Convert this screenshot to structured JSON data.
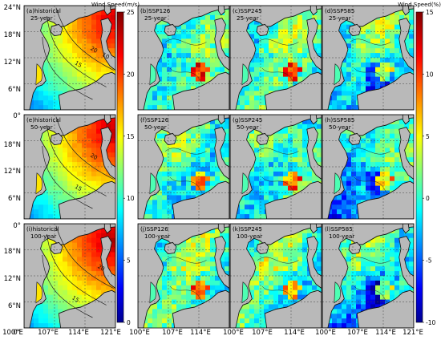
{
  "colorbar_left": {
    "title": "Wind Speed(m/s)",
    "ticks": [
      "25",
      "20",
      "15",
      "10",
      "5",
      "0"
    ],
    "range": [
      0,
      25
    ]
  },
  "colorbar_right": {
    "title": "Wind Speed(%)",
    "ticks": [
      "15",
      "10",
      "5",
      "0",
      "-5",
      "-10"
    ],
    "range": [
      -10,
      15
    ]
  },
  "lat_labels": [
    "24°N",
    "18°N",
    "12°N",
    "6°N",
    "0°",
    "18°N",
    "12°N",
    "6°N",
    "0°",
    "18°N",
    "12°N",
    "6°N",
    "0°"
  ],
  "lon_labels": [
    "100°E",
    "107°E",
    "114°E",
    "121°E",
    "100°E",
    "107°E",
    "114°E",
    "100°E",
    "107°E",
    "114°E",
    "100°E",
    "107°E",
    "114°E",
    "121°E"
  ],
  "panels": [
    {
      "id": "a",
      "line1": "(a)historical",
      "line2": "25-year",
      "kind": "abs",
      "level": 0
    },
    {
      "id": "b",
      "line1": "(b)SSP126",
      "line2": "25-year",
      "kind": "pct",
      "scenario": 0
    },
    {
      "id": "c",
      "line1": "(c)SSP245",
      "line2": "25-year",
      "kind": "pct",
      "scenario": 1
    },
    {
      "id": "d",
      "line1": "(d)SSP585",
      "line2": "25-year",
      "kind": "pct",
      "scenario": 2
    },
    {
      "id": "e",
      "line1": "(e)historical",
      "line2": "50-year",
      "kind": "abs",
      "level": 1
    },
    {
      "id": "f",
      "line1": "(f)SSP126",
      "line2": "50-year",
      "kind": "pct",
      "scenario": 0
    },
    {
      "id": "g",
      "line1": "(g)SSP245",
      "line2": "50-year",
      "kind": "pct",
      "scenario": 1
    },
    {
      "id": "h",
      "line1": "(h)SSP585",
      "line2": "50-year",
      "kind": "pct",
      "scenario": 2
    },
    {
      "id": "i",
      "line1": "(i)historical",
      "line2": "100-year",
      "kind": "abs",
      "level": 2
    },
    {
      "id": "j",
      "line1": "(j)SSP126",
      "line2": "100-year",
      "kind": "pct",
      "scenario": 0
    },
    {
      "id": "k",
      "line1": "(k)SSP245",
      "line2": "100-year",
      "kind": "pct",
      "scenario": 1
    },
    {
      "id": "l",
      "line1": "(l)SSP585",
      "line2": "100-year",
      "kind": "pct",
      "scenario": 2
    }
  ],
  "contour_labels": [
    "20",
    "15",
    "10",
    "20",
    "15",
    "20",
    "15"
  ],
  "colors": {
    "land": "#b9b9b9",
    "coast": "#111111",
    "sea_blank": "#ffffff"
  }
}
